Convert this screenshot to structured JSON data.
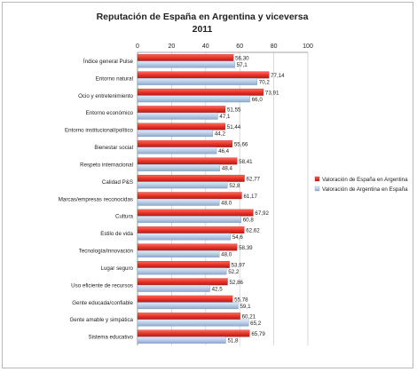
{
  "chart_data": {
    "type": "bar",
    "orientation": "horizontal",
    "title": "Reputación de España en Argentina y viceversa",
    "subtitle": "2011",
    "xlim": [
      0,
      100
    ],
    "xticks": [
      "0",
      "20",
      "40",
      "60",
      "80",
      "100"
    ],
    "grid": true,
    "legend_position": "right",
    "categories": [
      "Índice general Pulse",
      "Entorno natural",
      "Ocio y entretenimiento",
      "Entorno económico",
      "Entorno institucional/político",
      "Bienestar social",
      "Respeto internacional",
      "Calidad P&S",
      "Marcas/empresas reconocidas",
      "Cultura",
      "Estilo de vida",
      "Tecnología/innovación",
      "Lugar seguro",
      "Uso eficiente de recursos",
      "Gente educada/confiable",
      "Gente amable y simpática",
      "Sistema educativo"
    ],
    "series": [
      {
        "name": "Valoración de España en Argentina",
        "color": "#e8332a",
        "values": [
          56.3,
          77.14,
          73.91,
          51.55,
          51.44,
          55.66,
          58.41,
          62.77,
          61.17,
          67.92,
          62.62,
          58.39,
          53.97,
          52.86,
          55.78,
          60.21,
          65.79
        ],
        "labels": [
          "56,30",
          "77,14",
          "73,91",
          "51,55",
          "51,44",
          "55,66",
          "58,41",
          "62,77",
          "61,17",
          "67,92",
          "62,62",
          "58,39",
          "53,97",
          "52,86",
          "55,78",
          "60,21",
          "65,79"
        ]
      },
      {
        "name": "Valoración de Argentina en España",
        "color": "#b9cde6",
        "values": [
          57.1,
          70.2,
          66.0,
          47.1,
          44.2,
          46.4,
          48.4,
          52.8,
          48.0,
          60.8,
          54.6,
          48.0,
          52.2,
          42.5,
          59.1,
          65.2,
          51.8
        ],
        "labels": [
          "57,1",
          "70,2",
          "66,0",
          "47,1",
          "44,2",
          "46,4",
          "48,4",
          "52,8",
          "48,0",
          "60,8",
          "54,6",
          "48,0",
          "52,2",
          "42,5",
          "59,1",
          "65,2",
          "51,8"
        ]
      }
    ]
  }
}
